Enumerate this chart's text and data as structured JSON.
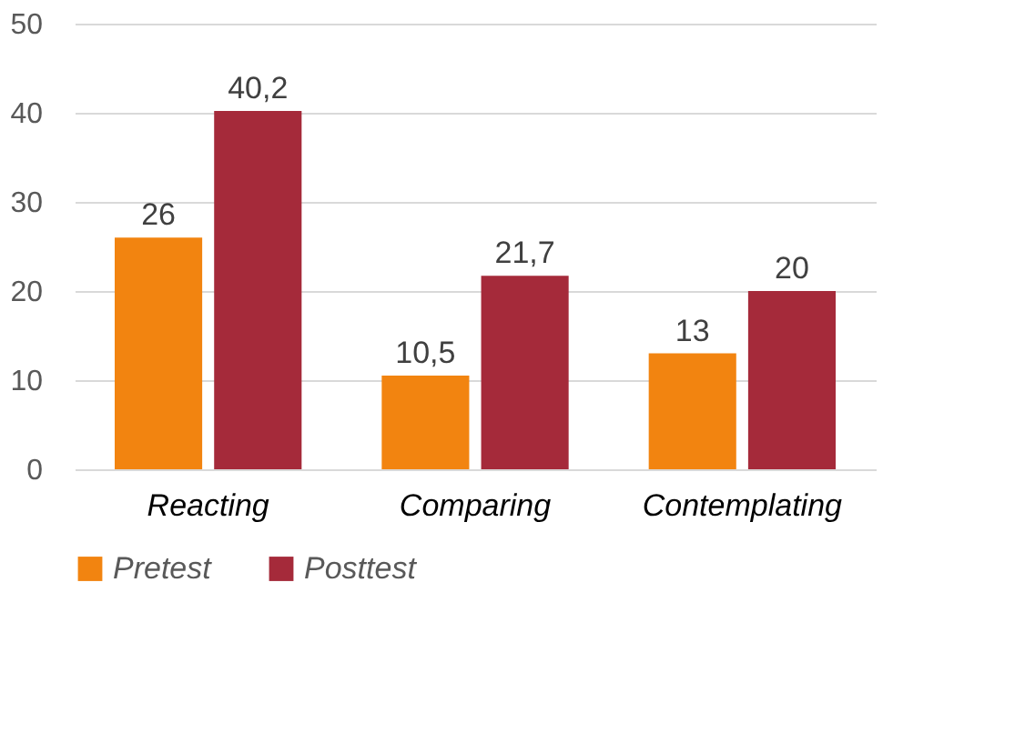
{
  "chart_data": {
    "type": "bar",
    "categories": [
      "Reacting",
      "Comparing",
      "Contemplating"
    ],
    "series": [
      {
        "name": "Pretest",
        "color": "#f28410",
        "values": [
          26,
          10.5,
          13
        ],
        "value_labels": [
          "26",
          "10,5",
          "13"
        ]
      },
      {
        "name": "Posttest",
        "color": "#a52a3a",
        "values": [
          40.2,
          21.7,
          20
        ],
        "value_labels": [
          "40,2",
          "21,7",
          "20"
        ]
      }
    ],
    "ylim": [
      0,
      50
    ],
    "yticks": [
      0,
      10,
      20,
      30,
      40,
      50
    ],
    "grid": "y",
    "legend": "bottom"
  }
}
